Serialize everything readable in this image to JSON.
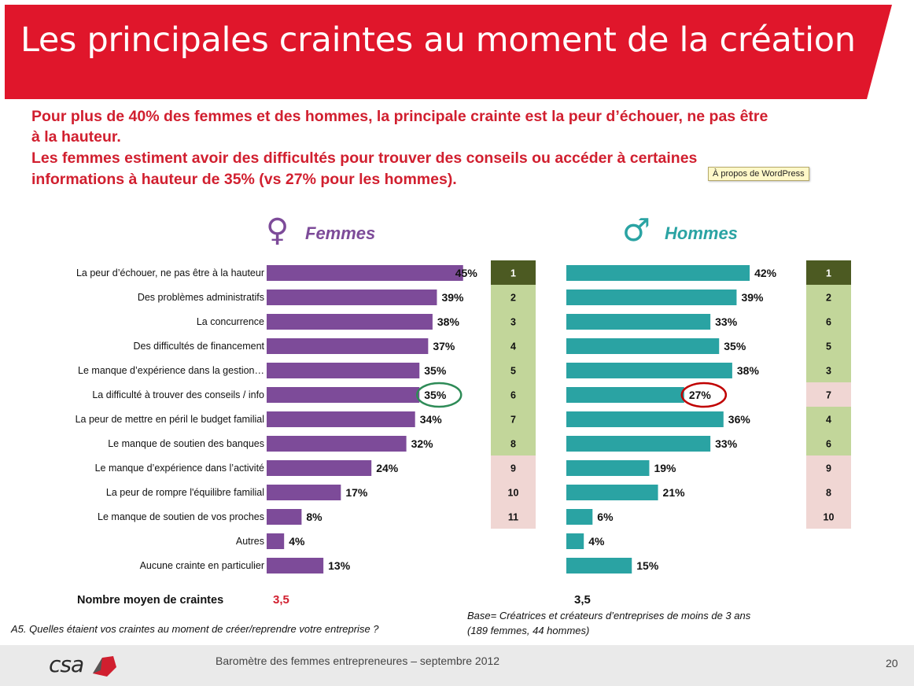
{
  "header": {
    "title": "Les principales craintes au moment de la création",
    "headline_1": "Pour plus de 40% des femmes et des hommes, la principale crainte est la peur d’échouer, ne pas être",
    "headline_2": "à la hauteur.",
    "headline_3": "Les femmes estiment avoir des difficultés pour trouver des conseils ou accéder à certaines",
    "headline_4": "informations à hauteur de 35% (vs 27% pour les hommes)."
  },
  "tooltip": "À propos de WordPress",
  "colors": {
    "banner": "#e0162b",
    "femmes_bar": "#7d4b99",
    "hommes_bar": "#2aa3a3",
    "rank_top": "#4c5a22",
    "rank_green": "#c2d69a",
    "rank_pink": "#f0d6d3",
    "circle_green": "#2e8b57",
    "circle_red": "#c00000",
    "headline_red": "#d11f2f"
  },
  "chart_data": {
    "type": "bar",
    "orientation": "horizontal",
    "categories": [
      "La peur d’échouer, ne pas être à la hauteur",
      "Des problèmes administratifs",
      "La concurrence",
      "Des difficultés de financement",
      "Le manque d’expérience dans la gestion…",
      "La difficulté à trouver des conseils / info",
      "La peur de mettre en péril le budget familial",
      "Le manque de soutien des banques",
      "Le manque d’expérience dans l’activité",
      "La peur de rompre l'équilibre familial",
      "Le manque de soutien de vos proches",
      "Autres",
      "Aucune crainte en particulier"
    ],
    "series": [
      {
        "name": "Femmes",
        "symbol": "♀",
        "values": [
          45,
          39,
          38,
          37,
          35,
          35,
          34,
          32,
          24,
          17,
          8,
          4,
          13
        ],
        "labels": [
          "45%",
          "39%",
          "38%",
          "37%",
          "35%",
          "35%",
          "34%",
          "32%",
          "24%",
          "17%",
          "8%",
          "4%",
          "13%"
        ],
        "ranks": [
          "1",
          "2",
          "3",
          "4",
          "5",
          "6",
          "7",
          "8",
          "9",
          "10",
          "11"
        ],
        "circled_index": 5
      },
      {
        "name": "Hommes",
        "symbol": "♂",
        "values": [
          42,
          39,
          33,
          35,
          38,
          27,
          36,
          33,
          19,
          21,
          6,
          4,
          15
        ],
        "labels": [
          "42%",
          "39%",
          "33%",
          "35%",
          "38%",
          "27%",
          "36%",
          "33%",
          "19%",
          "21%",
          "6%",
          "4%",
          "15%"
        ],
        "ranks": [
          "1",
          "2",
          "6",
          "5",
          "3",
          "7",
          "4",
          "6",
          "9",
          "8",
          "10"
        ],
        "circled_index": 5
      }
    ],
    "average_label": "Nombre moyen de craintes",
    "average_values": [
      "3,5",
      "3,5"
    ]
  },
  "footer": {
    "question": "A5. Quelles étaient vos craintes au moment de créer/reprendre votre entreprise ?",
    "base_1": "Base= Créatrices et créateurs d’entreprises de moins de 3 ans",
    "base_2": "(189 femmes, 44 hommes)",
    "logo_text": "csa",
    "source": "Baromètre des femmes entrepreneures –  septembre 2012",
    "page_number": "20"
  }
}
